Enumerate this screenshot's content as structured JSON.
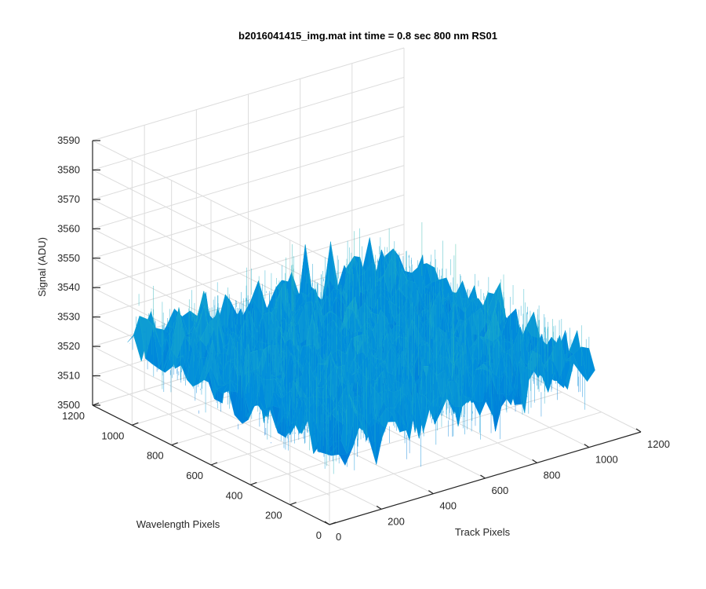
{
  "chart_data": {
    "type": "surface",
    "title": "b2016041415_img.mat int time = 0.8 sec  800 nm RS01",
    "xlabel": "Track Pixels",
    "ylabel": "Wavelength Pixels",
    "zlabel": "Signal (ADU)",
    "xlim": [
      0,
      1200
    ],
    "ylim": [
      0,
      1200
    ],
    "zlim": [
      3500,
      3590
    ],
    "xticks": [
      0,
      200,
      400,
      600,
      800,
      1000,
      1200
    ],
    "yticks": [
      0,
      200,
      400,
      600,
      800,
      1000,
      1200
    ],
    "zticks": [
      3500,
      3510,
      3520,
      3530,
      3540,
      3550,
      3560,
      3570,
      3580,
      3590
    ],
    "data_extent": {
      "x": [
        1,
        1024
      ],
      "y": [
        1,
        1024
      ]
    },
    "mean_signal": 3528,
    "noise_range": [
      3505,
      3570
    ],
    "grid": true,
    "colormap": "parula",
    "colors": {
      "low": "#0072bd",
      "mid": "#1ca9d8",
      "high": "#d9c83a",
      "accent": "#2fb9a0"
    }
  }
}
